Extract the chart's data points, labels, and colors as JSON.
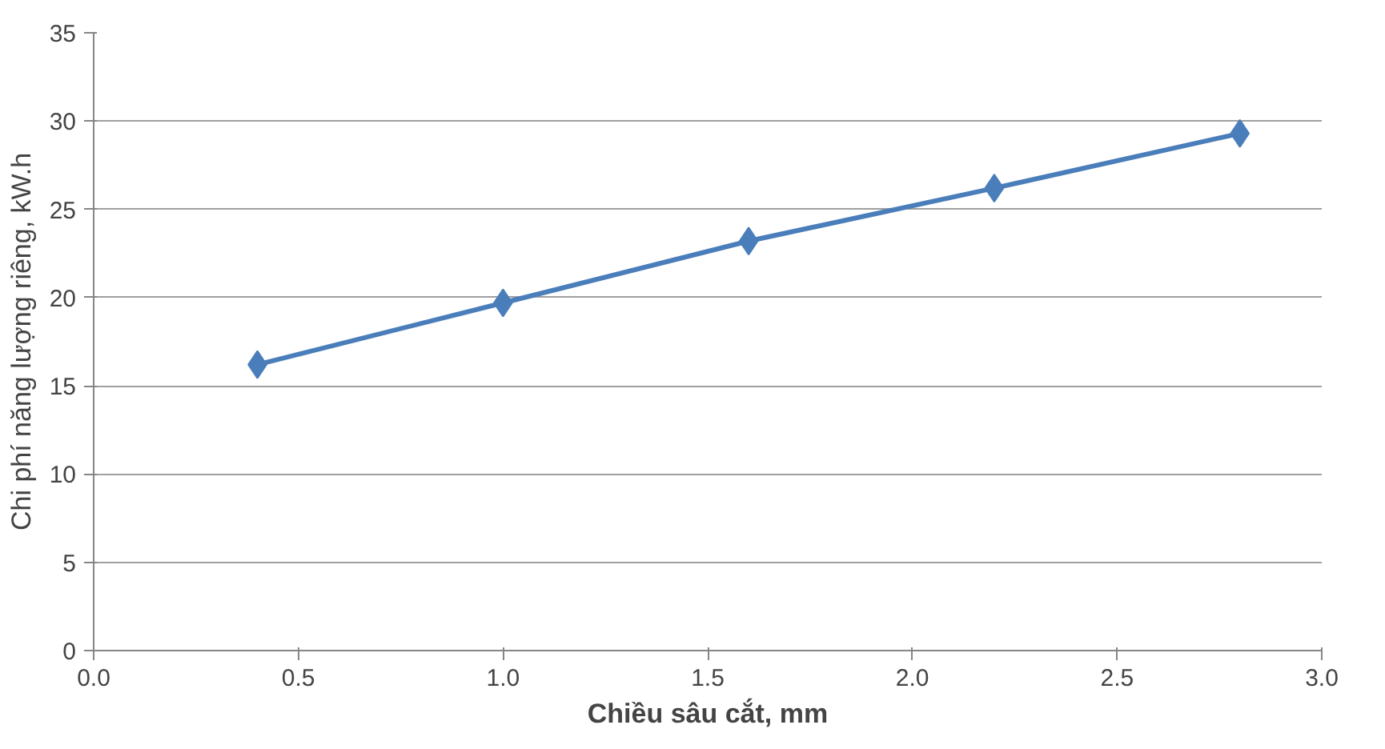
{
  "chart_data": {
    "type": "line",
    "xlabel": "Chiều sâu cắt, mm",
    "ylabel": "Chi phí năng lượng riêng, kW.h",
    "x": [
      0.4,
      1.0,
      1.6,
      2.2,
      2.8
    ],
    "series": [
      {
        "color": "#4a7ebb",
        "values": [
          16.2,
          19.7,
          23.2,
          26.2,
          29.3
        ]
      }
    ],
    "xlim": [
      0,
      3
    ],
    "xticks": [
      {
        "value": 0,
        "label": "0.0"
      },
      {
        "value": 0.5,
        "label": "0.5"
      },
      {
        "value": 1,
        "label": "1.0"
      },
      {
        "value": 1.5,
        "label": "1.5"
      },
      {
        "value": 2,
        "label": "2.0"
      },
      {
        "value": 2.5,
        "label": "2.5"
      },
      {
        "value": 3,
        "label": "3.0"
      }
    ],
    "ylim": [
      0,
      35
    ],
    "yticks": [
      0,
      5,
      10,
      15,
      20,
      25,
      30,
      35
    ],
    "grid": "y",
    "marker": "diamond",
    "line_style": "solid"
  }
}
